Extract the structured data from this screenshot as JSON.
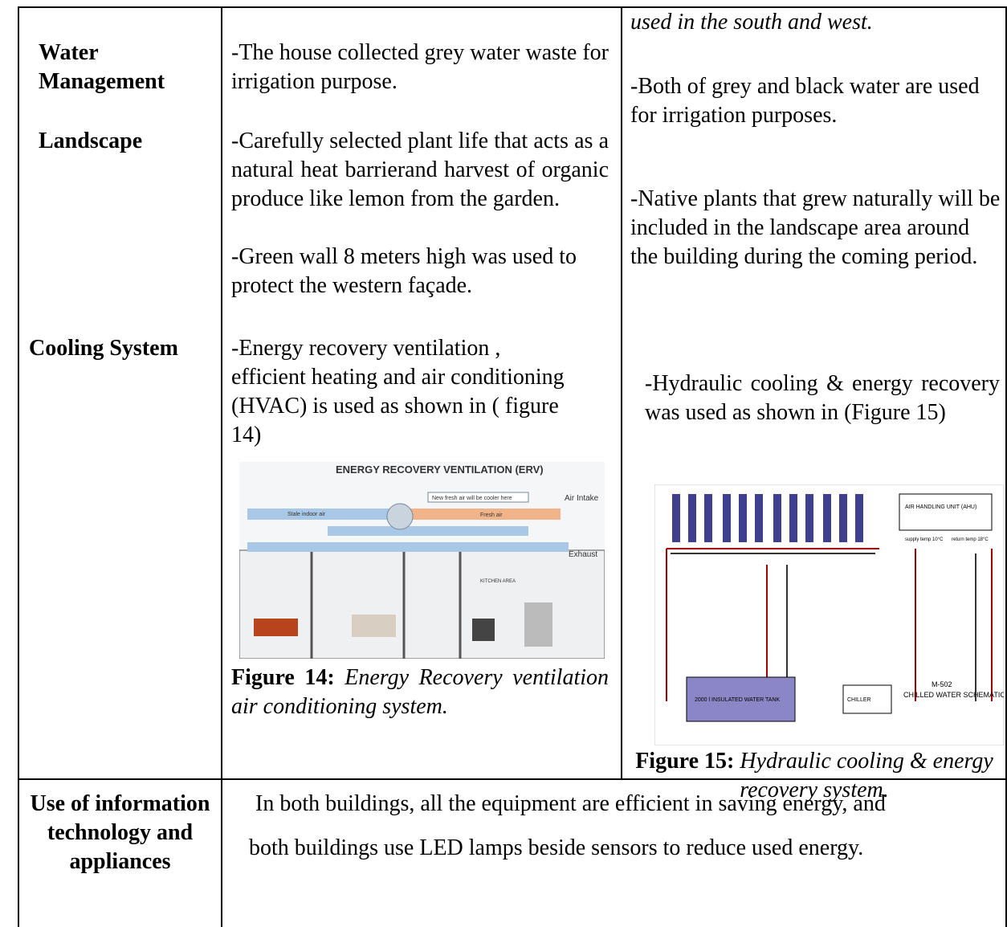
{
  "table": {
    "continued_text": "used in the south and west.",
    "rows": [
      {
        "label": "Water Management",
        "house": [
          "-The house collected grey water waste for irrigation purpose."
        ],
        "building": [
          "-Both of grey and black water are used for irrigation purposes."
        ]
      },
      {
        "label": "Landscape",
        "house": [
          "-Carefully selected plant life that acts as a natural heat barrierand harvest of organic produce like lemon from the garden.",
          "-Green wall 8 meters high was used to protect the western façade."
        ],
        "building": [
          "-Native plants that grew naturally will be included in the landscape area around the building during the coming period."
        ]
      },
      {
        "label": "Cooling System",
        "house": [
          "-Energy recovery ventilation , efficient  heating and air conditioning (HVAC) is used as shown in ( figure 14)"
        ],
        "building": [
          "-Hydraulic cooling & energy recovery was used as shown in (Figure 15)"
        ]
      }
    ],
    "figures": [
      {
        "label": "Figure 14:",
        "caption": "Energy Recovery ventilation air conditioning system.",
        "texts": [
          "ENERGY RECOVERY VENTILATION (ERV)",
          "New fresh air will be cooler here",
          "Stale indoor air",
          "Fresh air",
          "Air Intake",
          "Exhaust",
          "KITCHEN AREA"
        ]
      },
      {
        "label": "Figure 15:",
        "caption": "Hydraulic cooling & energy recovery system.",
        "texts": [
          "AIR HANDLING UNIT (AHU)",
          "supply temp 10°C",
          "return temp 18°C",
          "2000 l INSULATED WATER TANK",
          "CHILLER",
          "M-502",
          "CHILLED WATER SCHEMATIC"
        ]
      }
    ],
    "merged_row": {
      "label": "Use of information technology and appliances",
      "text": [
        "In both buildings, all the equipment are efficient in saving energy, and",
        "both buildings use LED lamps beside sensors to reduce used energy."
      ]
    }
  }
}
